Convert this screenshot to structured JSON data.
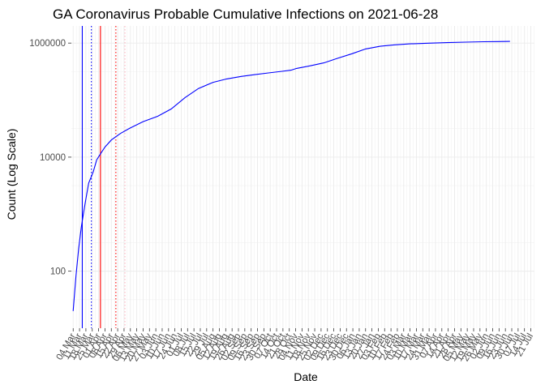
{
  "chart_data": {
    "type": "line",
    "title": "GA Coronavirus Probable Cumulative Infections on 2021-06-28",
    "xlabel": "Date",
    "ylabel": "Count (Log Scale)",
    "y_scale": "log10",
    "ylim": [
      10,
      2000000
    ],
    "xlim": [
      "2020-03-02",
      "2021-07-25"
    ],
    "grid": true,
    "legend": "none",
    "y_ticks": [
      {
        "value": 100,
        "label": "100"
      },
      {
        "value": 10000,
        "label": "10000"
      },
      {
        "value": 1000000,
        "label": "1000000"
      }
    ],
    "x_tick_start": "2020-03-04",
    "x_tick_step_days": 7,
    "x_tick_labels": [
      "04 Mar",
      "11 Mar",
      "18 Mar",
      "25 Mar",
      "01 Apr",
      "08 Apr",
      "15 Apr",
      "22 Apr",
      "29 Apr",
      "06 May",
      "13 May",
      "20 May",
      "27 May",
      "03 Jun",
      "10 Jun",
      "17 Jun",
      "24 Jun",
      "01 Jul",
      "08 Jul",
      "15 Jul",
      "22 Jul",
      "29 Jul",
      "05 Aug",
      "12 Aug",
      "19 Aug",
      "26 Aug",
      "02 Sep",
      "09 Sep",
      "16 Sep",
      "23 Sep",
      "30 Sep",
      "07 Oct",
      "14 Oct",
      "21 Oct",
      "28 Oct",
      "04 Nov",
      "11 Nov",
      "18 Nov",
      "25 Nov",
      "02 Dec",
      "09 Dec",
      "16 Dec",
      "23 Dec",
      "30 Dec",
      "06 Jan",
      "13 Jan",
      "20 Jan",
      "27 Jan",
      "03 Feb",
      "10 Feb",
      "17 Feb",
      "24 Feb",
      "03 Mar",
      "10 Mar",
      "17 Mar",
      "24 Mar",
      "31 Mar",
      "07 Apr",
      "14 Apr",
      "21 Apr",
      "28 Apr",
      "05 May",
      "12 May",
      "19 May",
      "26 May",
      "02 Jun",
      "09 Jun",
      "16 Jun",
      "23 Jun",
      "30 Jun",
      "07 Jul",
      "14 Jul",
      "21 Jul"
    ],
    "series": [
      {
        "color": "#0000ff",
        "points": [
          {
            "x": "2020-03-04",
            "y": 20
          },
          {
            "x": "2020-03-07",
            "y": 80
          },
          {
            "x": "2020-03-10",
            "y": 250
          },
          {
            "x": "2020-03-13",
            "y": 600
          },
          {
            "x": "2020-03-17",
            "y": 1500
          },
          {
            "x": "2020-03-21",
            "y": 3500
          },
          {
            "x": "2020-03-26",
            "y": 5500
          },
          {
            "x": "2020-03-30",
            "y": 9000
          },
          {
            "x": "2020-04-04",
            "y": 12000
          },
          {
            "x": "2020-04-08",
            "y": 15000
          },
          {
            "x": "2020-04-15",
            "y": 20000
          },
          {
            "x": "2020-04-25",
            "y": 26000
          },
          {
            "x": "2020-05-05",
            "y": 32000
          },
          {
            "x": "2020-05-20",
            "y": 42000
          },
          {
            "x": "2020-06-05",
            "y": 52000
          },
          {
            "x": "2020-06-20",
            "y": 70000
          },
          {
            "x": "2020-07-05",
            "y": 110000
          },
          {
            "x": "2020-07-20",
            "y": 160000
          },
          {
            "x": "2020-08-05",
            "y": 205000
          },
          {
            "x": "2020-08-20",
            "y": 235000
          },
          {
            "x": "2020-09-05",
            "y": 260000
          },
          {
            "x": "2020-09-20",
            "y": 280000
          },
          {
            "x": "2020-10-05",
            "y": 300000
          },
          {
            "x": "2020-10-20",
            "y": 320000
          },
          {
            "x": "2020-10-30",
            "y": 335000
          },
          {
            "x": "2020-11-05",
            "y": 360000
          },
          {
            "x": "2020-11-20",
            "y": 400000
          },
          {
            "x": "2020-12-05",
            "y": 450000
          },
          {
            "x": "2020-12-20",
            "y": 540000
          },
          {
            "x": "2021-01-05",
            "y": 650000
          },
          {
            "x": "2021-01-20",
            "y": 790000
          },
          {
            "x": "2021-02-05",
            "y": 880000
          },
          {
            "x": "2021-02-20",
            "y": 930000
          },
          {
            "x": "2021-03-10",
            "y": 970000
          },
          {
            "x": "2021-03-30",
            "y": 995000
          },
          {
            "x": "2021-04-20",
            "y": 1020000
          },
          {
            "x": "2021-05-10",
            "y": 1040000
          },
          {
            "x": "2021-05-30",
            "y": 1055000
          },
          {
            "x": "2021-06-15",
            "y": 1065000
          },
          {
            "x": "2021-06-28",
            "y": 1070000
          }
        ]
      }
    ],
    "reference_lines": [
      {
        "x": "2020-03-14",
        "color": "#0000ff",
        "style": "solid"
      },
      {
        "x": "2020-03-24",
        "color": "#0000ff",
        "style": "dotted"
      },
      {
        "x": "2020-04-03",
        "color": "#ff0000",
        "style": "solid"
      },
      {
        "x": "2020-04-20",
        "color": "#ff0000",
        "style": "dotted"
      },
      {
        "x": "2020-04-30",
        "color": "#ffb6c1",
        "style": "dotted"
      }
    ]
  }
}
